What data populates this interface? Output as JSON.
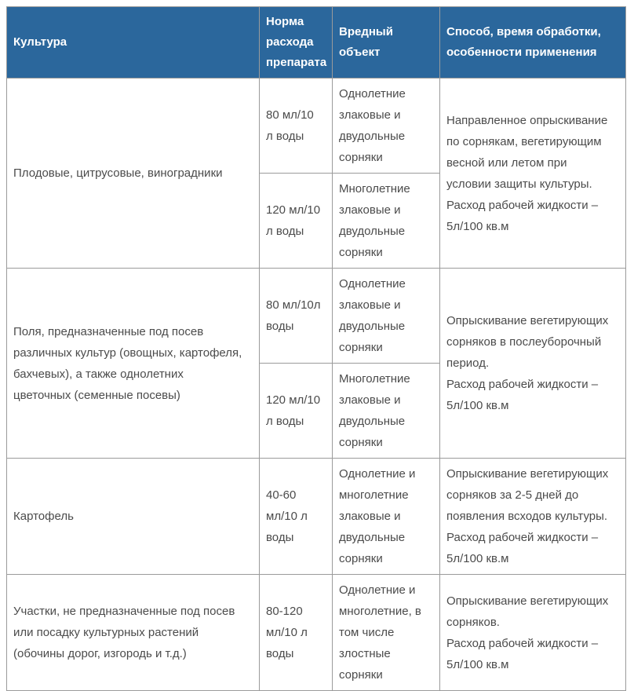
{
  "colors": {
    "header_bg": "#2b679c",
    "header_text": "#ffffff",
    "body_text": "#4b4b4b",
    "border": "#9b9b9b"
  },
  "table": {
    "header": {
      "culture": "Культура",
      "rate": "Норма\nрасхода\nпрепарата",
      "pest": "Вредный\nобъект",
      "method": "Способ, время обработки,\nособенности применения"
    },
    "rows": [
      {
        "culture": "Плодовые, цитрусовые, виноградники",
        "method": "Направленное опрыскивание\nпо сорнякам, вегетирующим\nвесной или летом при\nусловии защиты культуры.\nРасход рабочей жидкости –\n5л/100 кв.м",
        "subrows": [
          {
            "rate": "80 мл/10\nл воды",
            "pest": "Однолетние\nзлаковые и\nдвудольные\nсорняки"
          },
          {
            "rate": "120 мл/10\nл воды",
            "pest": "Многолетние\nзлаковые и\nдвудольные\nсорняки"
          }
        ]
      },
      {
        "culture": "Поля, предназначенные под посев\nразличных культур (овощных, картофеля,\nбахчевых), а также однолетних\nцветочных (семенные посевы)",
        "method": "Опрыскивание вегетирующих\nсорняков в послеуборочный\nпериод.\nРасход рабочей жидкости –\n5л/100 кв.м",
        "subrows": [
          {
            "rate": "80 мл/10л\nводы",
            "pest": "Однолетние\nзлаковые и\nдвудольные\nсорняки"
          },
          {
            "rate": "120 мл/10\nл воды",
            "pest": "Многолетние\nзлаковые и\nдвудольные\nсорняки"
          }
        ]
      },
      {
        "culture": "Картофель",
        "method": "Опрыскивание вегетирующих\nсорняков за 2-5 дней до\nпоявления всходов культуры.\nРасход рабочей жидкости –\n5л/100 кв.м",
        "subrows": [
          {
            "rate": "40-60\nмл/10 л\nводы",
            "pest": "Однолетние и\nмноголетние\nзлаковые и\nдвудольные\nсорняки"
          }
        ]
      },
      {
        "culture": "Участки, не предназначенные под посев\nили посадку культурных растений\n(обочины дорог, изгородь и т.д.)",
        "method": "Опрыскивание вегетирующих\nсорняков.\nРасход рабочей жидкости –\n5л/100 кв.м",
        "subrows": [
          {
            "rate": "80-120\nмл/10 л\nводы",
            "pest": "Однолетние и\nмноголетние, в\nтом числе\nзлостные\nсорняки"
          }
        ]
      }
    ]
  }
}
